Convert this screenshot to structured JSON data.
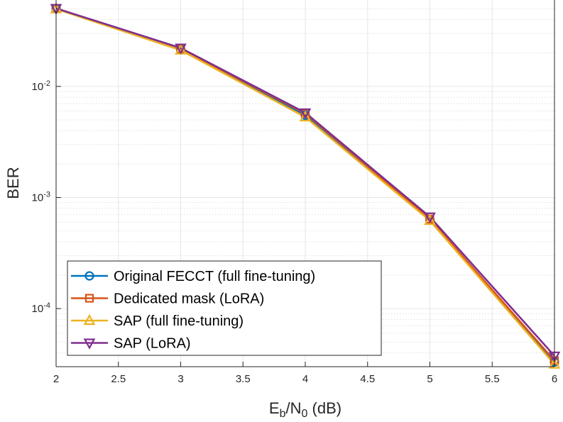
{
  "chart_data": {
    "type": "line",
    "xlabel": "E_b/N_0 (dB)",
    "xlabel_parts": {
      "main": "E",
      "sub1": "b",
      "slash": "/N",
      "sub2": "0",
      "unit": " (dB)"
    },
    "ylabel": "BER",
    "y_scale": "log",
    "xlim": [
      2,
      6
    ],
    "ylim": [
      3e-05,
      0.06
    ],
    "x_ticks": [
      2,
      2.5,
      3,
      3.5,
      4,
      4.5,
      5,
      5.5,
      6
    ],
    "x_tick_labels": [
      "2",
      "2.5",
      "3",
      "3.5",
      "4",
      "4.5",
      "5",
      "5.5",
      "6"
    ],
    "y_ticks": [
      0.0001,
      0.001,
      0.01
    ],
    "y_tick_labels": [
      {
        "base": "10",
        "exp": "-4"
      },
      {
        "base": "10",
        "exp": "-3"
      },
      {
        "base": "10",
        "exp": "-2"
      }
    ],
    "grid": true,
    "legend_position": "bottom-left",
    "x": [
      2,
      3,
      4,
      5,
      6
    ],
    "series": [
      {
        "name": "Original FECCT (full fine-tuning)",
        "color": "#0072BD",
        "marker": "circle",
        "values": [
          0.05,
          0.0215,
          0.0055,
          0.00063,
          3.3e-05
        ]
      },
      {
        "name": "Dedicated mask (LoRA)",
        "color": "#D95319",
        "marker": "square",
        "values": [
          0.0502,
          0.0218,
          0.0057,
          0.00064,
          3.4e-05
        ]
      },
      {
        "name": "SAP (full fine-tuning)",
        "color": "#EDB120",
        "marker": "triangle-up",
        "values": [
          0.0498,
          0.0212,
          0.0053,
          0.00062,
          3.15e-05
        ]
      },
      {
        "name": "SAP (LoRA)",
        "color": "#7E2F8E",
        "marker": "triangle-down",
        "values": [
          0.0505,
          0.0222,
          0.0058,
          0.00067,
          3.75e-05
        ]
      }
    ]
  }
}
